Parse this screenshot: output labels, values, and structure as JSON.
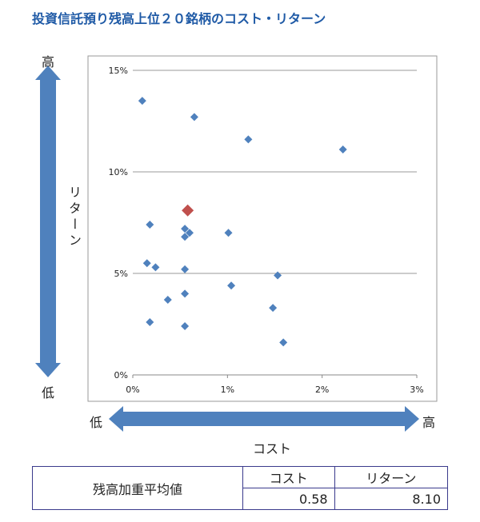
{
  "title": "投資信託預り残高上位２０銘柄のコスト・リターン",
  "y_axis": {
    "high": "高",
    "low": "低",
    "name": "リターン"
  },
  "x_axis": {
    "high": "高",
    "low": "低",
    "name": "コスト"
  },
  "colors": {
    "point": "#4f81bd",
    "highlight": "#c0504d",
    "arrow": "#4f81bd"
  },
  "chart_data": {
    "type": "scatter",
    "title": "",
    "xlabel": "コスト",
    "ylabel": "リターン",
    "xlim": [
      0,
      3
    ],
    "ylim": [
      0,
      15
    ],
    "x_ticks": [
      "0%",
      "1%",
      "2%",
      "3%"
    ],
    "y_ticks": [
      "0%",
      "5%",
      "10%",
      "15%"
    ],
    "grid": "horizontal",
    "points": [
      {
        "x": 0.1,
        "y": 13.5
      },
      {
        "x": 0.65,
        "y": 12.7
      },
      {
        "x": 1.22,
        "y": 11.6
      },
      {
        "x": 2.22,
        "y": 11.1
      },
      {
        "x": 0.18,
        "y": 7.4
      },
      {
        "x": 0.55,
        "y": 7.2
      },
      {
        "x": 0.6,
        "y": 7.0
      },
      {
        "x": 0.55,
        "y": 6.8
      },
      {
        "x": 1.01,
        "y": 7.0
      },
      {
        "x": 0.15,
        "y": 5.5
      },
      {
        "x": 0.24,
        "y": 5.3
      },
      {
        "x": 0.55,
        "y": 5.2
      },
      {
        "x": 1.53,
        "y": 4.9
      },
      {
        "x": 1.04,
        "y": 4.4
      },
      {
        "x": 0.55,
        "y": 4.0
      },
      {
        "x": 0.37,
        "y": 3.7
      },
      {
        "x": 1.48,
        "y": 3.3
      },
      {
        "x": 0.18,
        "y": 2.6
      },
      {
        "x": 0.55,
        "y": 2.4
      },
      {
        "x": 1.59,
        "y": 1.6
      }
    ],
    "highlight": {
      "x": 0.58,
      "y": 8.1
    }
  },
  "summary": {
    "row_label": "残高加重平均値",
    "headers": [
      "コスト",
      "リターン"
    ],
    "values": [
      "0.58",
      "8.10"
    ]
  }
}
